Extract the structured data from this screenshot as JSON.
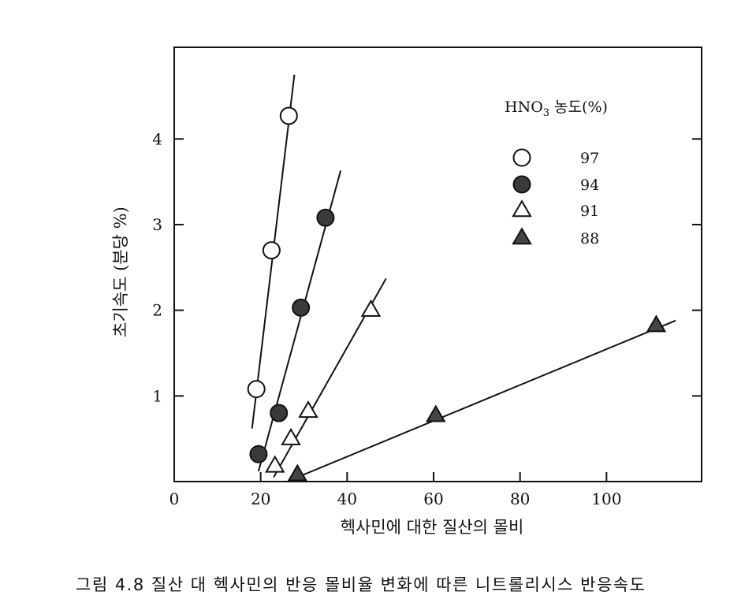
{
  "chart_data": {
    "type": "scatter",
    "xlabel": "헥사민에 대한 질산의 몰비",
    "ylabel": "초기속도 (분당 %)",
    "xlim": [
      0,
      122
    ],
    "ylim": [
      0,
      5.07
    ],
    "x_ticks": [
      0,
      20,
      40,
      60,
      80,
      100
    ],
    "y_ticks": [
      1,
      2,
      3,
      4
    ],
    "grid": false,
    "legend": {
      "title_main": "HNO",
      "title_sub": "3",
      "title_rest": " 농도(%)",
      "placement": "top-right",
      "entries": [
        "97",
        "94",
        "91",
        "88"
      ]
    },
    "series": [
      {
        "name": "97",
        "marker": "circle-open",
        "fill": "#ffffff",
        "points": [
          [
            19,
            1.08
          ],
          [
            22.5,
            2.7
          ],
          [
            26.5,
            4.27
          ]
        ],
        "fit": [
          [
            18,
            0.62
          ],
          [
            27.8,
            4.75
          ]
        ]
      },
      {
        "name": "94",
        "marker": "circle-filled",
        "fill": "#3a3a3a",
        "points": [
          [
            19.5,
            0.32
          ],
          [
            24.2,
            0.8
          ],
          [
            29.3,
            2.03
          ],
          [
            35,
            3.08
          ]
        ],
        "fit": [
          [
            19.5,
            0.12
          ],
          [
            38.5,
            3.63
          ]
        ]
      },
      {
        "name": "91",
        "marker": "triangle-open",
        "fill": "#ffffff",
        "points": [
          [
            23.3,
            0.18
          ],
          [
            27,
            0.5
          ],
          [
            31,
            0.82
          ],
          [
            45.5,
            2.0
          ]
        ],
        "fit": [
          [
            23,
            0.05
          ],
          [
            49,
            2.37
          ]
        ]
      },
      {
        "name": "88",
        "marker": "triangle-filled",
        "fill": "#444444",
        "points": [
          [
            28.5,
            0.08
          ],
          [
            60.5,
            0.77
          ],
          [
            111.5,
            1.82
          ]
        ],
        "fit": [
          [
            28,
            0.04
          ],
          [
            116,
            1.88
          ]
        ]
      }
    ]
  },
  "caption": "그림 4.8  질산 대 헥사민의 반응 몰비율 변화에 따른 니트롤리시스 반응속도"
}
